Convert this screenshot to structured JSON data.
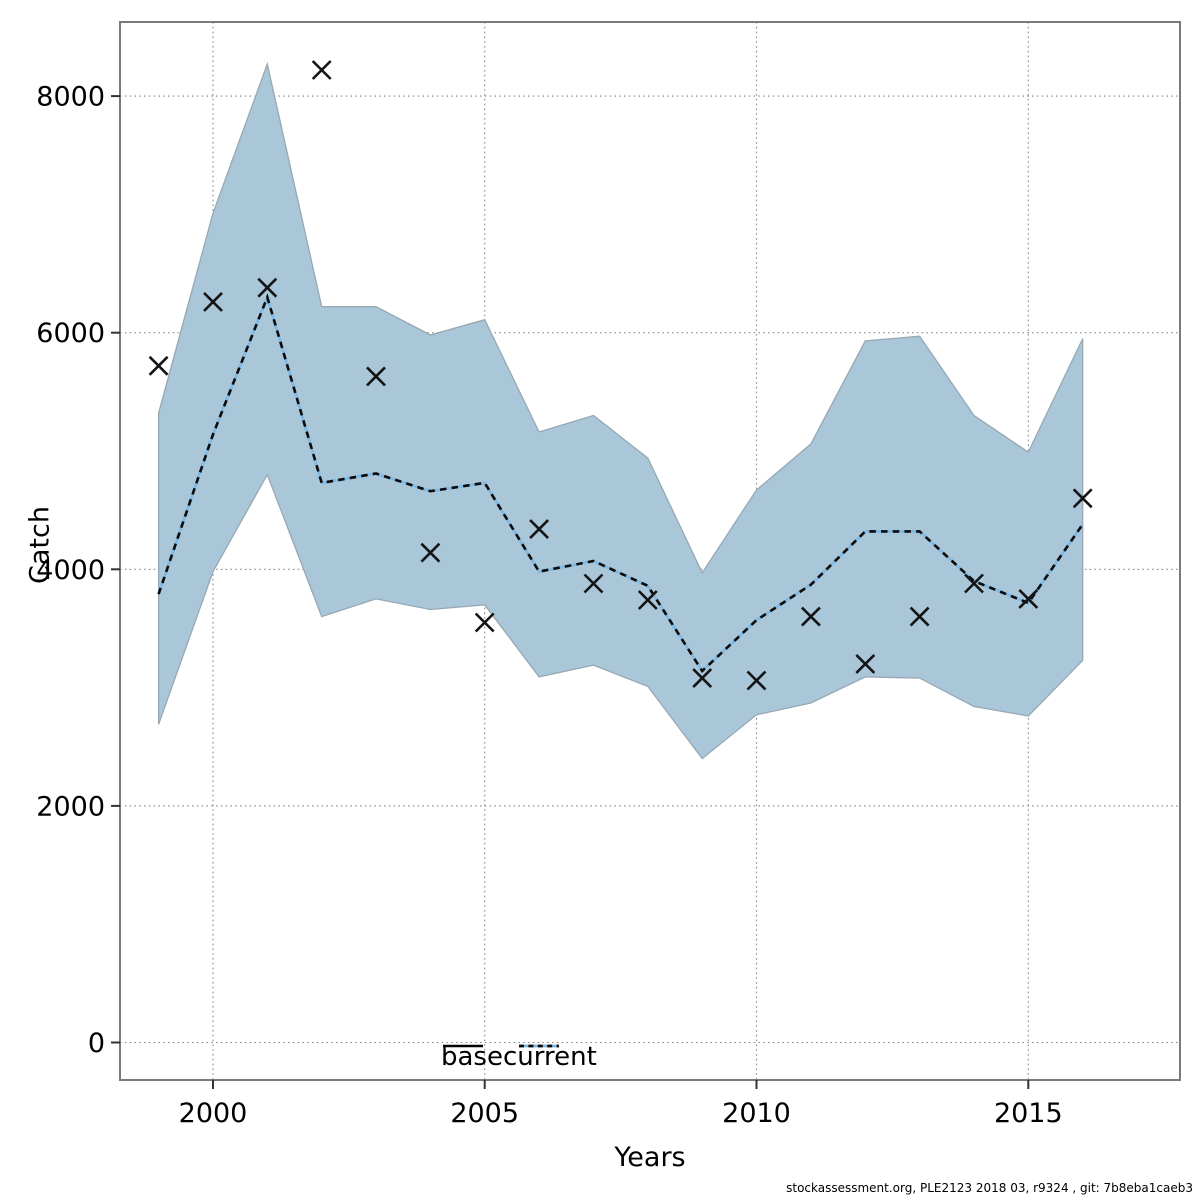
{
  "figure": {
    "background": "#ffffff",
    "xlabel": "Years",
    "ylabel": "Catch"
  },
  "legend": {
    "entries": [
      {
        "label": "base",
        "line_style": "solid",
        "line_color": "#000000"
      },
      {
        "label": "current",
        "line_style": "dotted",
        "line_color": "#7FB9E4"
      }
    ]
  },
  "footer": {
    "credit": "stockassessment.org, PLE2123 2018 03, r9324 , git: 7b8eba1caeb3"
  },
  "chart_data": {
    "type": "line",
    "title": "",
    "xlabel": "Years",
    "ylabel": "Catch",
    "grid": "dotted",
    "legend_position": "bottom-center-inside",
    "x_ticks": [
      2000,
      2005,
      2010,
      2015
    ],
    "y_ticks": [
      0,
      2000,
      4000,
      6000,
      8000
    ],
    "xlim": [
      1998.29,
      2017.79
    ],
    "ylim": [
      -317,
      8626
    ],
    "years": [
      1999,
      2000,
      2001,
      2002,
      2003,
      2004,
      2005,
      2006,
      2007,
      2008,
      2009,
      2010,
      2011,
      2012,
      2013,
      2014,
      2015,
      2016
    ],
    "series": [
      {
        "name": "observed_catch",
        "plot": "scatter",
        "marker": "x",
        "values": [
          5720,
          6260,
          6380,
          8220,
          5630,
          4140,
          3550,
          4340,
          3880,
          3740,
          3080,
          3060,
          3600,
          3200,
          3600,
          3880,
          3750,
          4600
        ]
      },
      {
        "name": "current_fit",
        "plot": "line",
        "style": "dotted",
        "values": [
          3790,
          5140,
          6300,
          4730,
          4810,
          4660,
          4730,
          3980,
          4070,
          3860,
          3140,
          3570,
          3870,
          4320,
          4320,
          3900,
          3715,
          4380
        ]
      },
      {
        "name": "ci_lower",
        "plot": "band-lower",
        "values": [
          2690,
          3980,
          4800,
          3600,
          3750,
          3660,
          3700,
          3090,
          3190,
          3010,
          2400,
          2770,
          2870,
          3090,
          3080,
          2840,
          2760,
          3230
        ]
      },
      {
        "name": "ci_upper",
        "plot": "band-upper",
        "values": [
          5320,
          7010,
          8270,
          6220,
          6220,
          5980,
          6110,
          5160,
          5300,
          4940,
          3970,
          4670,
          5060,
          5930,
          5970,
          5300,
          4990,
          5950
        ]
      }
    ],
    "colors": {
      "band_fill": "#A9C7D8",
      "band_edge": "#97A8B4",
      "fit_line_under": "#7FB9E4",
      "fit_line_dash": "#0b0b0b",
      "marker": "#141414",
      "grid": "#8b8b8b",
      "axis_box": "#7a7a7a",
      "tick": "#333333",
      "text": "#000000"
    }
  }
}
